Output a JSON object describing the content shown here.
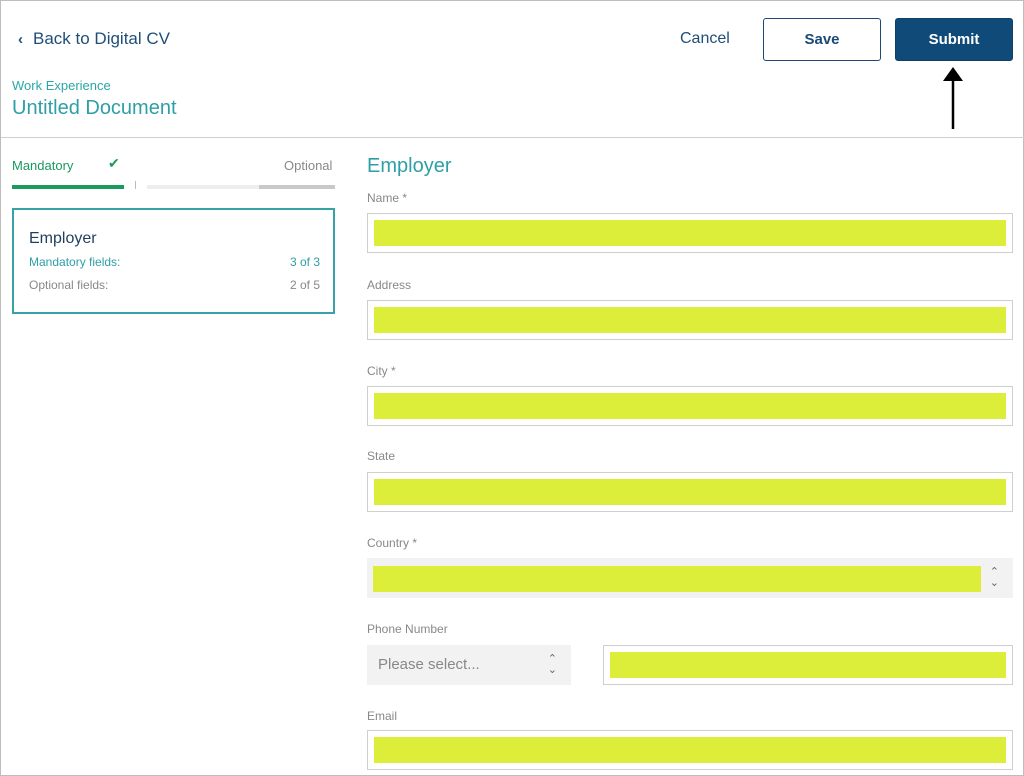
{
  "header": {
    "back_label": "Back to Digital CV",
    "doc_type": "Work Experience",
    "doc_title": "Untitled Document",
    "cancel_label": "Cancel",
    "save_label": "Save",
    "submit_label": "Submit"
  },
  "progress": {
    "mandatory_label": "Mandatory",
    "check_glyph": "✔",
    "optional_label": "Optional"
  },
  "section_card": {
    "title": "Employer",
    "mandatory_label": "Mandatory fields:",
    "mandatory_value": "3 of 3",
    "optional_label": "Optional fields:",
    "optional_value": "2 of 5"
  },
  "form": {
    "heading": "Employer",
    "fields": {
      "name": {
        "label": "Name *",
        "value": ""
      },
      "address": {
        "label": "Address",
        "value": ""
      },
      "city": {
        "label": "City *",
        "value": ""
      },
      "state": {
        "label": "State",
        "value": ""
      },
      "country": {
        "label": "Country *",
        "value": ""
      },
      "phone": {
        "label": "Phone Number",
        "code_placeholder": "Please select...",
        "value": ""
      },
      "email": {
        "label": "Email",
        "value": ""
      }
    }
  },
  "colors": {
    "accent": "#2e9fa6",
    "primary": "#104a78",
    "success": "#1a9a5e",
    "highlight": "#dcee3a"
  }
}
